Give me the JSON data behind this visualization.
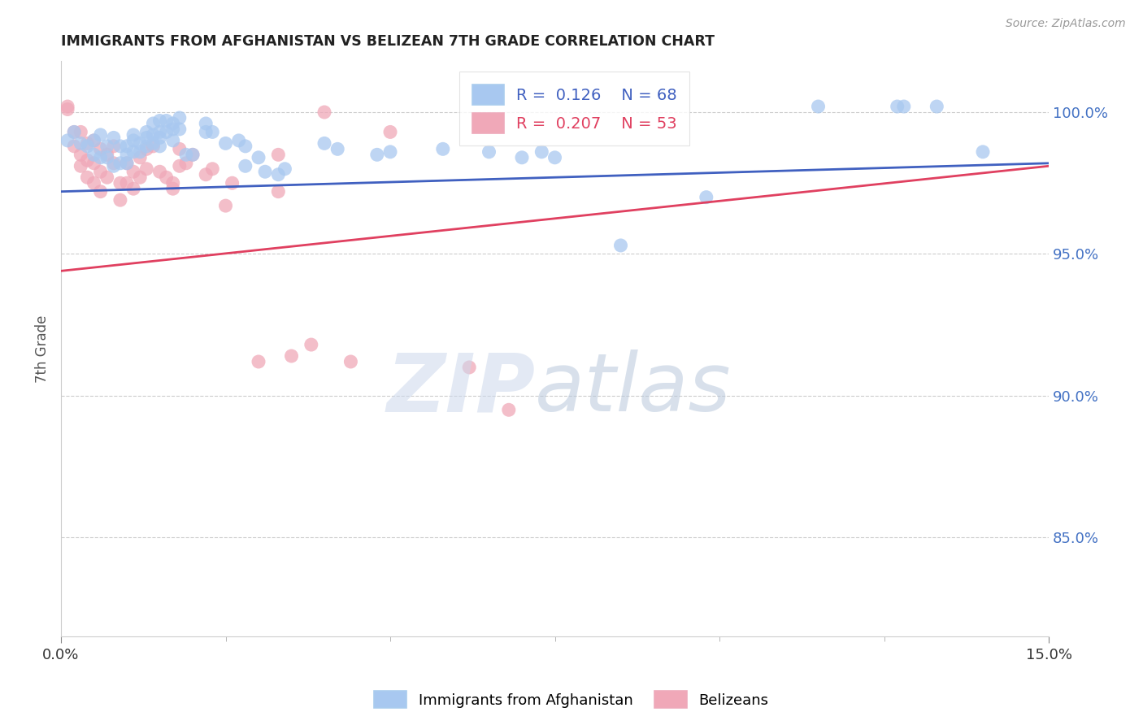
{
  "title": "IMMIGRANTS FROM AFGHANISTAN VS BELIZEAN 7TH GRADE CORRELATION CHART",
  "source": "Source: ZipAtlas.com",
  "ylabel": "7th Grade",
  "yaxis_labels": [
    "100.0%",
    "95.0%",
    "90.0%",
    "85.0%"
  ],
  "yaxis_values": [
    1.0,
    0.95,
    0.9,
    0.85
  ],
  "xaxis_range": [
    0.0,
    0.15
  ],
  "yaxis_range": [
    0.815,
    1.018
  ],
  "legend_blue_r": "0.126",
  "legend_blue_n": "68",
  "legend_pink_r": "0.207",
  "legend_pink_n": "53",
  "blue_color": "#a8c8f0",
  "pink_color": "#f0a8b8",
  "blue_line_color": "#4060c0",
  "pink_line_color": "#e04060",
  "blue_scatter": [
    [
      0.001,
      0.99
    ],
    [
      0.002,
      0.993
    ],
    [
      0.003,
      0.989
    ],
    [
      0.004,
      0.988
    ],
    [
      0.005,
      0.985
    ],
    [
      0.005,
      0.99
    ],
    [
      0.006,
      0.984
    ],
    [
      0.006,
      0.992
    ],
    [
      0.007,
      0.988
    ],
    [
      0.007,
      0.984
    ],
    [
      0.008,
      0.991
    ],
    [
      0.008,
      0.981
    ],
    [
      0.009,
      0.988
    ],
    [
      0.009,
      0.982
    ],
    [
      0.01,
      0.988
    ],
    [
      0.01,
      0.985
    ],
    [
      0.01,
      0.982
    ],
    [
      0.011,
      0.992
    ],
    [
      0.011,
      0.99
    ],
    [
      0.011,
      0.986
    ],
    [
      0.012,
      0.989
    ],
    [
      0.012,
      0.986
    ],
    [
      0.013,
      0.993
    ],
    [
      0.013,
      0.991
    ],
    [
      0.013,
      0.988
    ],
    [
      0.014,
      0.996
    ],
    [
      0.014,
      0.992
    ],
    [
      0.014,
      0.989
    ],
    [
      0.015,
      0.997
    ],
    [
      0.015,
      0.993
    ],
    [
      0.015,
      0.991
    ],
    [
      0.015,
      0.988
    ],
    [
      0.016,
      0.997
    ],
    [
      0.016,
      0.993
    ],
    [
      0.017,
      0.996
    ],
    [
      0.017,
      0.994
    ],
    [
      0.017,
      0.99
    ],
    [
      0.018,
      0.998
    ],
    [
      0.018,
      0.994
    ],
    [
      0.019,
      0.985
    ],
    [
      0.02,
      0.985
    ],
    [
      0.022,
      0.996
    ],
    [
      0.022,
      0.993
    ],
    [
      0.023,
      0.993
    ],
    [
      0.025,
      0.989
    ],
    [
      0.027,
      0.99
    ],
    [
      0.028,
      0.988
    ],
    [
      0.028,
      0.981
    ],
    [
      0.03,
      0.984
    ],
    [
      0.031,
      0.979
    ],
    [
      0.033,
      0.978
    ],
    [
      0.034,
      0.98
    ],
    [
      0.04,
      0.989
    ],
    [
      0.042,
      0.987
    ],
    [
      0.048,
      0.985
    ],
    [
      0.05,
      0.986
    ],
    [
      0.058,
      0.987
    ],
    [
      0.065,
      0.986
    ],
    [
      0.07,
      0.984
    ],
    [
      0.073,
      0.986
    ],
    [
      0.075,
      0.984
    ],
    [
      0.085,
      0.953
    ],
    [
      0.098,
      0.97
    ],
    [
      0.115,
      1.002
    ],
    [
      0.127,
      1.002
    ],
    [
      0.14,
      0.986
    ],
    [
      0.128,
      1.002
    ],
    [
      0.133,
      1.002
    ]
  ],
  "pink_scatter": [
    [
      0.001,
      1.002
    ],
    [
      0.001,
      1.001
    ],
    [
      0.002,
      0.993
    ],
    [
      0.002,
      0.988
    ],
    [
      0.003,
      0.993
    ],
    [
      0.003,
      0.985
    ],
    [
      0.003,
      0.981
    ],
    [
      0.004,
      0.989
    ],
    [
      0.004,
      0.983
    ],
    [
      0.004,
      0.977
    ],
    [
      0.005,
      0.99
    ],
    [
      0.005,
      0.982
    ],
    [
      0.005,
      0.975
    ],
    [
      0.006,
      0.987
    ],
    [
      0.006,
      0.979
    ],
    [
      0.006,
      0.972
    ],
    [
      0.007,
      0.985
    ],
    [
      0.007,
      0.977
    ],
    [
      0.008,
      0.988
    ],
    [
      0.008,
      0.982
    ],
    [
      0.009,
      0.975
    ],
    [
      0.009,
      0.969
    ],
    [
      0.01,
      0.982
    ],
    [
      0.01,
      0.975
    ],
    [
      0.011,
      0.979
    ],
    [
      0.011,
      0.973
    ],
    [
      0.012,
      0.984
    ],
    [
      0.012,
      0.977
    ],
    [
      0.013,
      0.987
    ],
    [
      0.013,
      0.98
    ],
    [
      0.014,
      0.988
    ],
    [
      0.015,
      0.979
    ],
    [
      0.016,
      0.977
    ],
    [
      0.017,
      0.975
    ],
    [
      0.017,
      0.973
    ],
    [
      0.018,
      0.987
    ],
    [
      0.018,
      0.981
    ],
    [
      0.019,
      0.982
    ],
    [
      0.02,
      0.985
    ],
    [
      0.022,
      0.978
    ],
    [
      0.023,
      0.98
    ],
    [
      0.025,
      0.967
    ],
    [
      0.026,
      0.975
    ],
    [
      0.03,
      0.912
    ],
    [
      0.033,
      0.985
    ],
    [
      0.033,
      0.972
    ],
    [
      0.035,
      0.914
    ],
    [
      0.038,
      0.918
    ],
    [
      0.04,
      1.0
    ],
    [
      0.044,
      0.912
    ],
    [
      0.05,
      0.993
    ],
    [
      0.062,
      0.91
    ],
    [
      0.068,
      0.895
    ]
  ],
  "blue_trendline": [
    [
      0.0,
      0.972
    ],
    [
      0.15,
      0.982
    ]
  ],
  "pink_trendline": [
    [
      0.0,
      0.944
    ],
    [
      0.15,
      0.981
    ]
  ]
}
